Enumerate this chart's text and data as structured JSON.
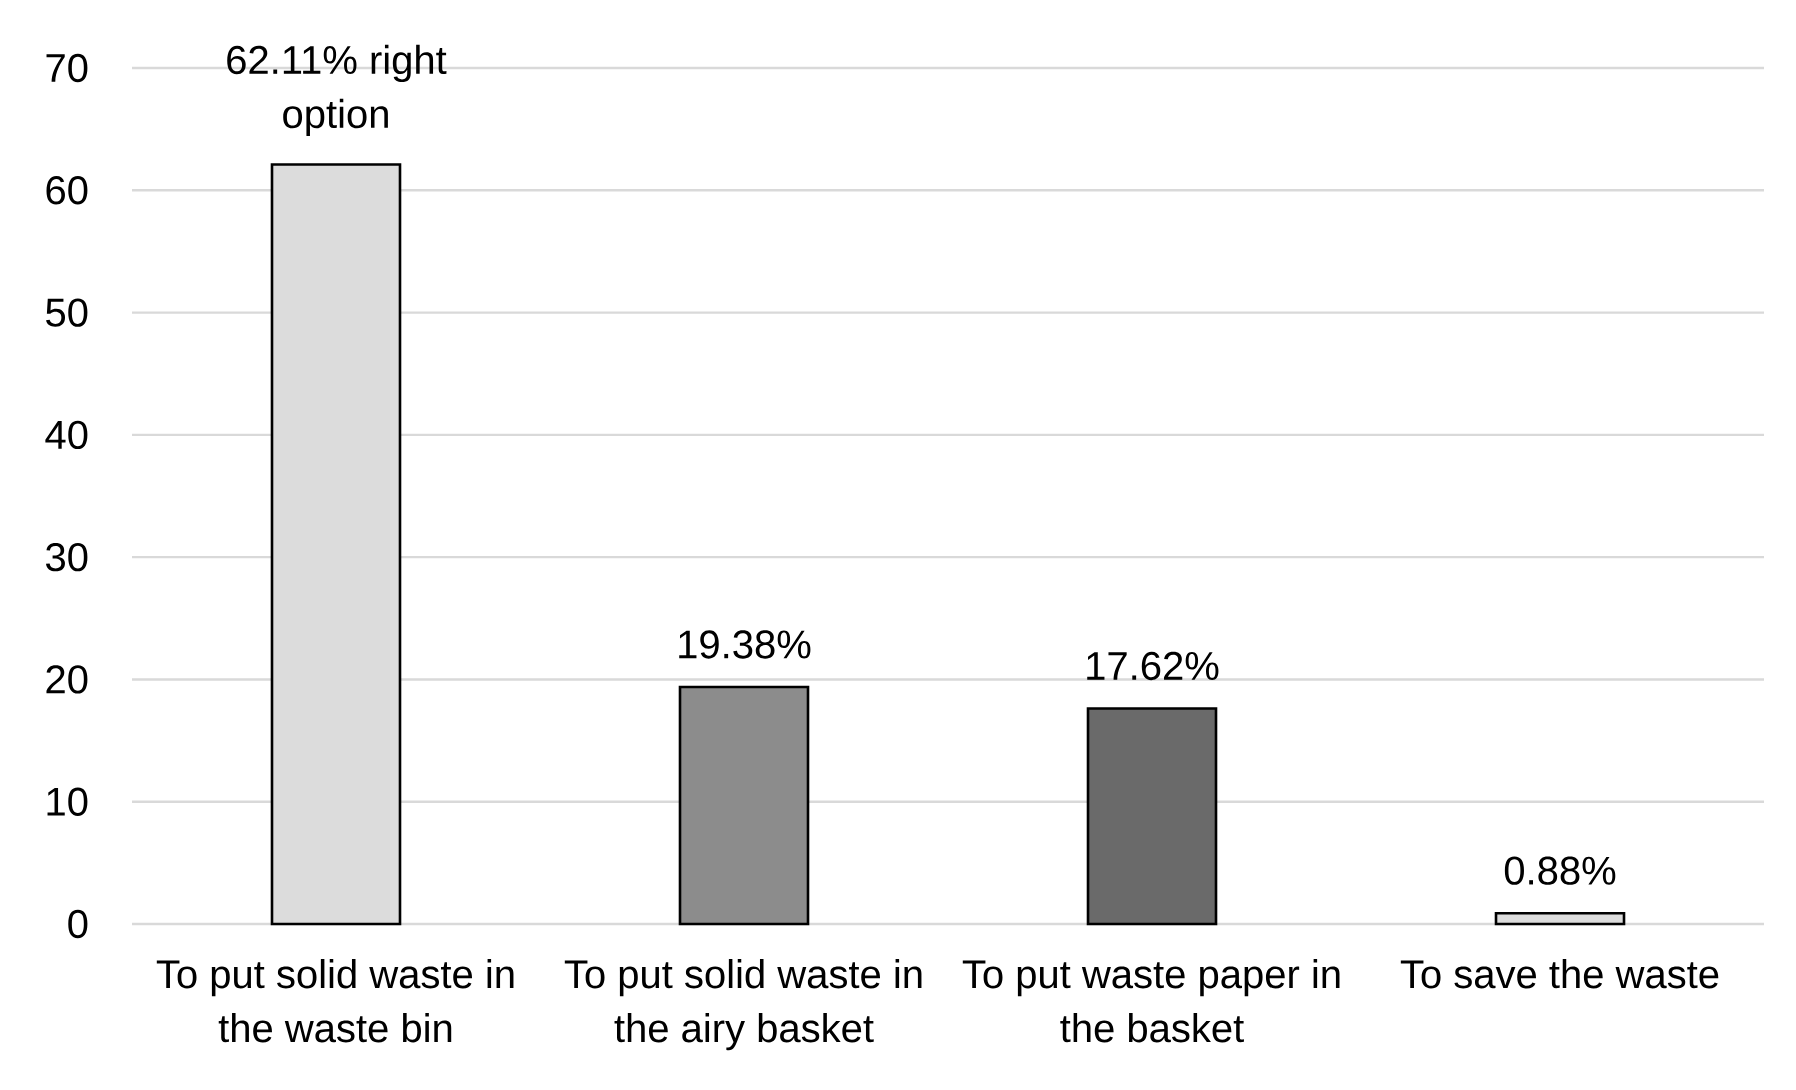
{
  "chart_data": {
    "type": "bar",
    "categories": [
      "To put solid waste in the waste bin",
      "To put solid waste in the airy basket",
      "To put waste paper in the basket",
      "To save the waste"
    ],
    "values": [
      62.11,
      19.38,
      17.62,
      0.88
    ],
    "value_labels": [
      "62.11% right option",
      "19.38%",
      "17.62%",
      "0.88%"
    ],
    "colors": [
      "#dcdcdc",
      "#8c8c8c",
      "#6a6a6a",
      "#dcdcdc"
    ],
    "ylim": [
      0,
      70
    ],
    "yticks": [
      0,
      10,
      20,
      30,
      40,
      50,
      60,
      70
    ],
    "grid": "y"
  }
}
